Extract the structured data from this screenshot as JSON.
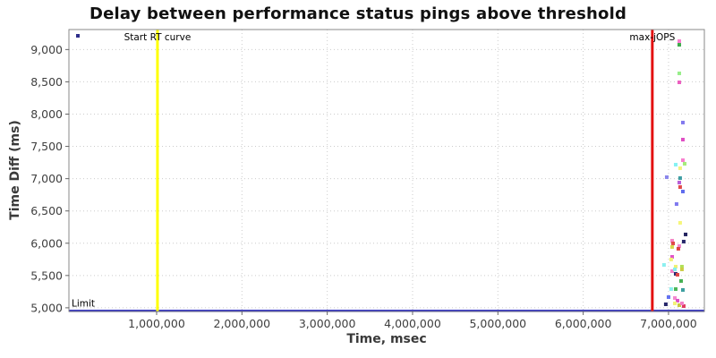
{
  "chart_data": {
    "type": "scatter",
    "title": "Delay between performance status pings above threshold",
    "xlabel": "Time, msec",
    "ylabel": "Time Diff (ms)",
    "xlim": [
      -28000,
      7420000
    ],
    "ylim": [
      4943,
      9310
    ],
    "x_ticks": [
      1000000,
      2000000,
      3000000,
      4000000,
      5000000,
      6000000,
      7000000
    ],
    "y_ticks": [
      5000,
      5500,
      6000,
      6500,
      7000,
      7500,
      8000,
      8500,
      9000
    ],
    "grid": {
      "style": "dotted",
      "color": "#cccccc"
    },
    "legend_position": "none",
    "colors": {
      "plot_border": "#888888",
      "tick_mark": "#666666",
      "tick_label": "#3f3f3f",
      "axis_title": "#3a3a3a",
      "annotation_text": "#000000",
      "start_rt_line": "#ffff00",
      "max_jops_line": "#e31111",
      "limit_line": "#2020c0"
    },
    "annotations": [
      {
        "type": "vline",
        "label": "Start RT curve",
        "x": 1010000,
        "color": "#ffff00",
        "width": 3
      },
      {
        "type": "vline",
        "label": "max-jOPS",
        "x": 6810000,
        "color": "#e31111",
        "width": 3
      },
      {
        "type": "hline",
        "label": "Limit",
        "y": 4952,
        "color": "#2020c0",
        "width": 2.5
      }
    ],
    "points": [
      {
        "x": 77000,
        "y": 9213,
        "c": "#2d2d8a"
      },
      {
        "x": 7126000,
        "y": 9130,
        "c": "#f97fd0"
      },
      {
        "x": 7126000,
        "y": 9074,
        "c": "#3cab4a"
      },
      {
        "x": 7126000,
        "y": 8631,
        "c": "#97ee8a"
      },
      {
        "x": 7126000,
        "y": 8492,
        "c": "#ec5fc0"
      },
      {
        "x": 7168000,
        "y": 7869,
        "c": "#8278ee"
      },
      {
        "x": 7168000,
        "y": 7605,
        "c": "#df4ec4"
      },
      {
        "x": 7168000,
        "y": 7286,
        "c": "#f980cf"
      },
      {
        "x": 7189000,
        "y": 7231,
        "c": "#a5ec7a"
      },
      {
        "x": 7084000,
        "y": 7217,
        "c": "#86f2f2"
      },
      {
        "x": 7136000,
        "y": 7162,
        "c": "#f4f47e"
      },
      {
        "x": 6979000,
        "y": 7023,
        "c": "#8a86ec"
      },
      {
        "x": 7136000,
        "y": 7009,
        "c": "#3f9ea3"
      },
      {
        "x": 7126000,
        "y": 6940,
        "c": "#b75fd8"
      },
      {
        "x": 7136000,
        "y": 6870,
        "c": "#e14b4b"
      },
      {
        "x": 7168000,
        "y": 6801,
        "c": "#5f6cee"
      },
      {
        "x": 7094000,
        "y": 6607,
        "c": "#7f79ef"
      },
      {
        "x": 7136000,
        "y": 6316,
        "c": "#f6f67a"
      },
      {
        "x": 7200000,
        "y": 6136,
        "c": "#23235f"
      },
      {
        "x": 7178000,
        "y": 6025,
        "c": "#28286b"
      },
      {
        "x": 7042000,
        "y": 6039,
        "c": "#f585c5"
      },
      {
        "x": 7053000,
        "y": 5997,
        "c": "#e04848"
      },
      {
        "x": 7042000,
        "y": 5942,
        "c": "#d8d84e"
      },
      {
        "x": 7126000,
        "y": 5956,
        "c": "#f08ad2"
      },
      {
        "x": 7115000,
        "y": 5914,
        "c": "#dc4343"
      },
      {
        "x": 7042000,
        "y": 5789,
        "c": "#e052c8"
      },
      {
        "x": 7031000,
        "y": 5748,
        "c": "#f2f276"
      },
      {
        "x": 6947000,
        "y": 5664,
        "c": "#8df0f0"
      },
      {
        "x": 7084000,
        "y": 5637,
        "c": "#f0f070"
      },
      {
        "x": 7157000,
        "y": 5637,
        "c": "#b0e055"
      },
      {
        "x": 7157000,
        "y": 5595,
        "c": "#cccc44"
      },
      {
        "x": 7042000,
        "y": 5567,
        "c": "#f585cb"
      },
      {
        "x": 7074000,
        "y": 5595,
        "c": "#84eded"
      },
      {
        "x": 7084000,
        "y": 5526,
        "c": "#2b2b72"
      },
      {
        "x": 7105000,
        "y": 5512,
        "c": "#de4545"
      },
      {
        "x": 7147000,
        "y": 5415,
        "c": "#46b052"
      },
      {
        "x": 7031000,
        "y": 5290,
        "c": "#8af0ef"
      },
      {
        "x": 7084000,
        "y": 5290,
        "c": "#4cb658"
      },
      {
        "x": 7168000,
        "y": 5276,
        "c": "#3d9fa0"
      },
      {
        "x": 7000000,
        "y": 5165,
        "c": "#6472f2"
      },
      {
        "x": 7074000,
        "y": 5151,
        "c": "#f489cf"
      },
      {
        "x": 7105000,
        "y": 5110,
        "c": "#dd4fc6"
      },
      {
        "x": 6968000,
        "y": 5054,
        "c": "#26266a"
      },
      {
        "x": 7074000,
        "y": 5068,
        "c": "#f3f378"
      },
      {
        "x": 7126000,
        "y": 5040,
        "c": "#caca42"
      },
      {
        "x": 7178000,
        "y": 5026,
        "c": "#e03a60"
      },
      {
        "x": 7157000,
        "y": 5068,
        "c": "#f27fc8"
      }
    ]
  }
}
